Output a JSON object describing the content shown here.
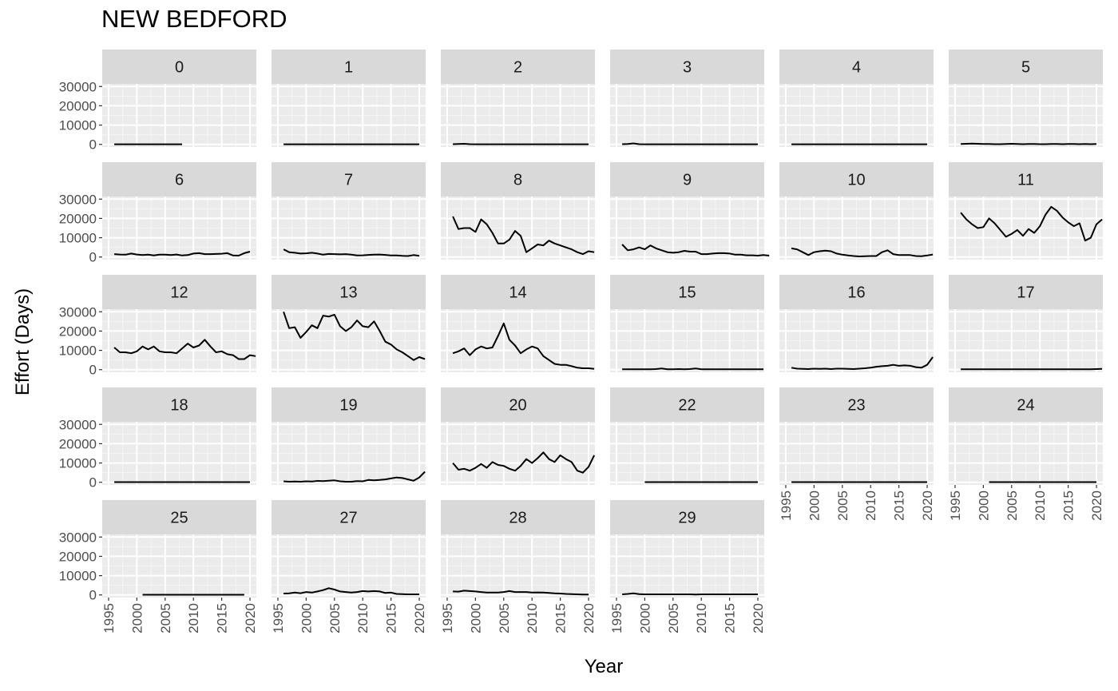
{
  "chart_data": {
    "type": "line",
    "title": "NEW BEDFORD",
    "xlabel": "Year",
    "ylabel": "Effort (Days)",
    "xlim": [
      1995,
      2020
    ],
    "ylim": [
      0,
      30000
    ],
    "x_ticks": [
      1995,
      2000,
      2005,
      2010,
      2015,
      2020
    ],
    "y_ticks": [
      0,
      10000,
      20000,
      30000
    ],
    "grid": true,
    "panels": [
      {
        "label": "0",
        "start": 1996,
        "values": [
          50,
          50,
          50,
          50,
          50,
          50,
          50,
          50,
          50,
          50,
          50,
          50,
          50
        ]
      },
      {
        "label": "1",
        "start": 1996,
        "values": [
          50,
          50,
          50,
          50,
          50,
          50,
          50,
          50,
          50,
          50,
          50,
          50,
          50,
          50,
          50,
          50,
          50,
          50,
          50,
          50,
          50,
          50,
          50,
          50,
          50
        ]
      },
      {
        "label": "2",
        "start": 1996,
        "values": [
          100,
          200,
          300,
          100,
          50,
          50,
          50,
          50,
          50,
          50,
          50,
          50,
          50,
          50,
          50,
          50,
          50,
          50,
          50,
          50,
          50,
          50,
          50,
          50,
          50
        ]
      },
      {
        "label": "3",
        "start": 1996,
        "values": [
          100,
          200,
          500,
          100,
          50,
          50,
          50,
          50,
          50,
          50,
          50,
          50,
          50,
          50,
          50,
          50,
          50,
          50,
          50,
          50,
          50,
          50,
          50,
          50,
          50
        ]
      },
      {
        "label": "4",
        "start": 1996,
        "values": [
          50,
          50,
          50,
          50,
          50,
          50,
          50,
          50,
          50,
          50,
          50,
          50,
          50,
          50,
          50,
          50,
          50,
          50,
          50,
          50,
          50,
          50,
          50,
          50,
          50
        ]
      },
      {
        "label": "5",
        "start": 1996,
        "values": [
          200,
          300,
          400,
          300,
          200,
          200,
          100,
          100,
          200,
          300,
          200,
          100,
          200,
          200,
          100,
          100,
          200,
          200,
          100,
          200,
          200,
          100,
          200,
          100,
          200
        ]
      },
      {
        "label": "6",
        "start": 1996,
        "values": [
          1500,
          1300,
          1200,
          1800,
          1300,
          1000,
          1200,
          800,
          1200,
          1200,
          1000,
          1300,
          800,
          1000,
          1800,
          2000,
          1500,
          1500,
          1600,
          1700,
          2000,
          800,
          700,
          2000,
          2800
        ]
      },
      {
        "label": "7",
        "start": 1996,
        "values": [
          4000,
          2500,
          2200,
          1800,
          1900,
          2200,
          1800,
          1200,
          1600,
          1500,
          1400,
          1500,
          1200,
          800,
          900,
          1100,
          1200,
          1300,
          1100,
          800,
          800,
          600,
          500,
          1000,
          600
        ]
      },
      {
        "label": "8",
        "start": 1996,
        "values": [
          21000,
          14500,
          15000,
          15000,
          13000,
          19500,
          17000,
          12500,
          7000,
          7000,
          9000,
          13500,
          11000,
          2500,
          4500,
          6500,
          6000,
          8500,
          7000,
          6000,
          5000,
          4000,
          2500,
          1500,
          3000,
          2500
        ]
      },
      {
        "label": "9",
        "start": 1996,
        "values": [
          6500,
          3500,
          4000,
          5000,
          4000,
          6000,
          4500,
          3500,
          2500,
          2200,
          2500,
          3200,
          2800,
          2800,
          1500,
          1500,
          1800,
          2000,
          2000,
          1800,
          1200,
          1200,
          900,
          900,
          700,
          1000,
          700
        ]
      },
      {
        "label": "10",
        "start": 1996,
        "values": [
          4500,
          4000,
          2500,
          1000,
          2500,
          3000,
          3300,
          3000,
          1800,
          1200,
          800,
          500,
          300,
          400,
          500,
          500,
          2500,
          3500,
          1500,
          1000,
          1000,
          1000,
          500,
          400,
          800,
          1300
        ]
      },
      {
        "label": "11",
        "start": 1996,
        "values": [
          23000,
          19500,
          17000,
          15000,
          15500,
          20000,
          17500,
          14000,
          10500,
          12000,
          14000,
          11000,
          14500,
          12500,
          16000,
          22000,
          26000,
          24000,
          20500,
          18000,
          16000,
          17500,
          8500,
          10000,
          17000,
          19500
        ]
      },
      {
        "label": "12",
        "start": 1996,
        "values": [
          11500,
          9000,
          9000,
          8500,
          9500,
          12000,
          10500,
          12000,
          9500,
          9000,
          9000,
          8500,
          11000,
          13500,
          11500,
          12500,
          15500,
          12000,
          9000,
          9500,
          8000,
          7500,
          5500,
          5500,
          7500,
          7000
        ]
      },
      {
        "label": "13",
        "start": 1996,
        "values": [
          30000,
          21500,
          22000,
          16500,
          19500,
          23000,
          21500,
          28000,
          27500,
          28500,
          22500,
          20000,
          22000,
          25500,
          22500,
          22000,
          25000,
          20000,
          14500,
          13000,
          10500,
          9000,
          7000,
          5000,
          6500,
          5500
        ]
      },
      {
        "label": "14",
        "start": 1996,
        "values": [
          8500,
          9500,
          11000,
          7500,
          10500,
          12000,
          11000,
          11500,
          17500,
          24000,
          15500,
          12500,
          8500,
          10500,
          12000,
          11000,
          7000,
          5000,
          3000,
          2500,
          2500,
          1800,
          1000,
          700,
          700,
          400
        ]
      },
      {
        "label": "15",
        "start": 1996,
        "values": [
          200,
          200,
          200,
          200,
          200,
          200,
          300,
          600,
          200,
          200,
          300,
          200,
          300,
          600,
          200,
          200,
          200,
          200,
          200,
          200,
          200,
          200,
          200,
          200,
          200,
          200
        ]
      },
      {
        "label": "16",
        "start": 1996,
        "values": [
          1000,
          500,
          400,
          300,
          500,
          400,
          500,
          300,
          500,
          500,
          400,
          300,
          500,
          700,
          1000,
          1500,
          1800,
          2000,
          2500,
          2000,
          2200,
          2000,
          1300,
          1000,
          2500,
          6500
        ]
      },
      {
        "label": "17",
        "start": 1996,
        "values": [
          200,
          200,
          200,
          200,
          200,
          200,
          200,
          200,
          200,
          200,
          200,
          200,
          200,
          200,
          200,
          200,
          200,
          200,
          200,
          200,
          200,
          200,
          200,
          200,
          300,
          400
        ]
      },
      {
        "label": "18",
        "start": 1996,
        "values": [
          100,
          100,
          100,
          100,
          100,
          100,
          100,
          100,
          100,
          100,
          100,
          100,
          100,
          100,
          100,
          100,
          100,
          100,
          100,
          100,
          100,
          100,
          100,
          100,
          100
        ]
      },
      {
        "label": "19",
        "start": 1996,
        "values": [
          500,
          300,
          400,
          300,
          500,
          400,
          700,
          600,
          800,
          1000,
          500,
          300,
          300,
          600,
          500,
          1200,
          1000,
          1200,
          1500,
          2000,
          2500,
          2200,
          1500,
          800,
          2500,
          5500
        ]
      },
      {
        "label": "20",
        "start": 1996,
        "values": [
          10000,
          6500,
          7000,
          6000,
          7500,
          9500,
          7500,
          10500,
          9000,
          8500,
          7000,
          6000,
          8500,
          12000,
          10000,
          12500,
          15500,
          12000,
          10500,
          14000,
          12000,
          10500,
          6000,
          5000,
          8000,
          14000
        ]
      },
      {
        "label": "22",
        "start": 2000,
        "values": [
          100,
          100,
          100,
          100,
          100,
          100,
          100,
          100,
          100,
          100,
          100,
          100,
          100,
          100,
          100,
          100,
          100,
          100,
          100,
          100,
          100
        ]
      },
      {
        "label": "23",
        "start": 1996,
        "values": [
          100,
          100,
          100,
          100,
          100,
          100,
          100,
          100,
          100,
          100,
          100,
          100,
          100,
          100,
          100,
          100,
          100,
          100,
          100,
          100,
          100,
          100,
          100,
          100,
          100
        ]
      },
      {
        "label": "24",
        "start": 2001,
        "values": [
          100,
          100,
          100,
          100,
          100,
          100,
          100,
          100,
          100,
          100,
          100,
          100,
          100,
          100,
          100,
          100,
          100,
          100,
          100,
          100
        ]
      },
      {
        "label": "25",
        "start": 2001,
        "values": [
          100,
          100,
          100,
          100,
          100,
          100,
          100,
          100,
          100,
          100,
          100,
          100,
          100,
          100,
          100,
          100,
          100,
          100,
          100
        ]
      },
      {
        "label": "27",
        "start": 1996,
        "values": [
          700,
          800,
          1200,
          900,
          1500,
          1200,
          1800,
          2500,
          3500,
          2800,
          1800,
          1500,
          1200,
          1500,
          2000,
          1800,
          2000,
          1800,
          1000,
          1200,
          500,
          400,
          300,
          300,
          300
        ]
      },
      {
        "label": "28",
        "start": 1996,
        "values": [
          1800,
          1700,
          2200,
          2000,
          1800,
          1500,
          1200,
          1200,
          1200,
          1500,
          2000,
          1500,
          1500,
          1500,
          1200,
          1300,
          1200,
          1000,
          800,
          700,
          500,
          400,
          300,
          200,
          200
        ]
      },
      {
        "label": "29",
        "start": 1996,
        "values": [
          300,
          500,
          800,
          400,
          300,
          300,
          300,
          300,
          300,
          300,
          300,
          300,
          300,
          200,
          300,
          300,
          300,
          300,
          300,
          300,
          300,
          300,
          300,
          300,
          300
        ]
      }
    ]
  }
}
